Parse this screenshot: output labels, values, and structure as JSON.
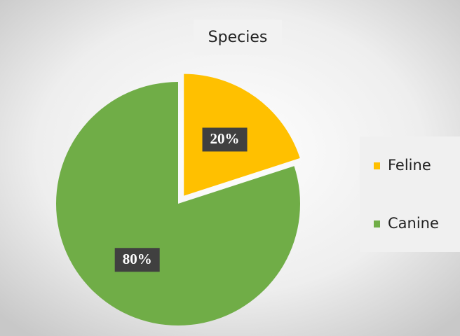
{
  "chart_data": {
    "type": "pie",
    "title": "Species",
    "categories": [
      "Feline",
      "Canine"
    ],
    "values": [
      20,
      80
    ],
    "value_labels": [
      "20%",
      "80%"
    ],
    "colors": [
      "#ffc000",
      "#70ad47"
    ],
    "explode": [
      true,
      false
    ],
    "legend": "right"
  }
}
